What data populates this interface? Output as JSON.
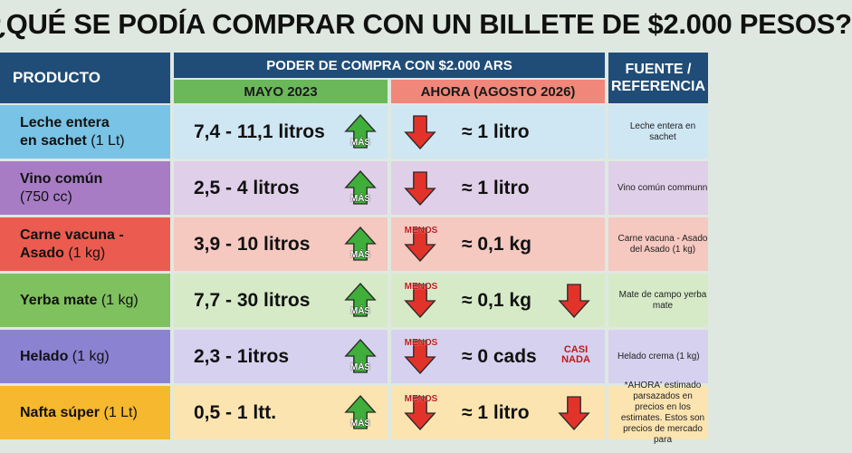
{
  "title": "¿QUÉ SE PODÍA COMPRAR CON UN BILLETE DE $2.000 PESOS?",
  "headers": {
    "producto": "PRODUCTO",
    "poder": "PODER DE COMPRA CON $2.000 ARS",
    "mayo": "MAYO 2023",
    "ahora": "AHORA (AGOSTO 2026)",
    "fuente_line1": "FUENTE /",
    "fuente_line2": "REFERENCIA"
  },
  "labels": {
    "mas": "MÁS",
    "menos": "MENOS",
    "casi_line1": "CASI",
    "casi_line2": "NADA"
  },
  "colors": {
    "header_blue": "#1f4d78",
    "green_arrow": "#3fae3a",
    "red_arrow": "#e2332a"
  },
  "rows": [
    {
      "name": "Leche entera",
      "name2": "en sachet",
      "unit": "(1 Lt)",
      "mayo": "7,4 - 11,1 litros",
      "ahora": "≈ 1 litro",
      "fuente": "Leche entera en sachet",
      "bg_prod": "#79c3e6",
      "bg": "#cfe6f3",
      "mayo_icon": "arrow-up-icon",
      "ahora_icon": "arrow-down-icon"
    },
    {
      "name": "Vino común",
      "name2": "",
      "unit": "(750 cc)",
      "mayo": "2,5 - 4 litros",
      "ahora": "≈ 1 litro",
      "fuente": "Vino común communn",
      "bg_prod": "#a77cc4",
      "bg": "#e0cfe8",
      "mayo_icon": "arrow-up-icon",
      "ahora_icon": "arrow-down-icon"
    },
    {
      "name": "Carne vacuna -",
      "name2": "Asado",
      "unit": "(1 kg)",
      "mayo": "3,9 - 10 litros",
      "ahora": "≈ 0,1 kg",
      "fuente": "Carne vacuna - Asado del Asado (1 kg)",
      "bg_prod": "#ec5b4f",
      "bg": "#f5c8c0",
      "mayo_icon": "arrow-up-icon",
      "ahora_icon": "arrow-down-icon"
    },
    {
      "name": "Yerba mate",
      "name2": "",
      "unit": "(1 kg)",
      "mayo": "7,7 - 30 litros",
      "ahora": "≈ 0,1 kg",
      "fuente": "Mate de campo yerba mate",
      "bg_prod": "#7fc05f",
      "bg": "#d6eac8",
      "mayo_icon": "arrow-up-icon",
      "ahora_icon": "arrow-down-icon"
    },
    {
      "name": "Helado",
      "name2": "",
      "unit": "(1 kg)",
      "mayo": "2,3 - 1itros",
      "ahora": "≈ 0 cads",
      "fuente": "Helado crema (1 kg)",
      "bg_prod": "#8c82d2",
      "bg": "#d6d1ee",
      "mayo_icon": "arrow-up-icon",
      "ahora_icon": "arrow-down-icon"
    },
    {
      "name": "Nafta súper",
      "name2": "",
      "unit": "(1 Lt)",
      "mayo": "0,5 - 1 ltt.",
      "ahora": "≈ 1 litro",
      "fuente": "*AHORA' estimado parsazados en precios en los estimates. Estos son precios de mercado para",
      "bg_prod": "#f5b82e",
      "bg": "#fbe4b0",
      "mayo_icon": "arrow-up-icon",
      "ahora_icon": "arrow-down-icon"
    }
  ]
}
